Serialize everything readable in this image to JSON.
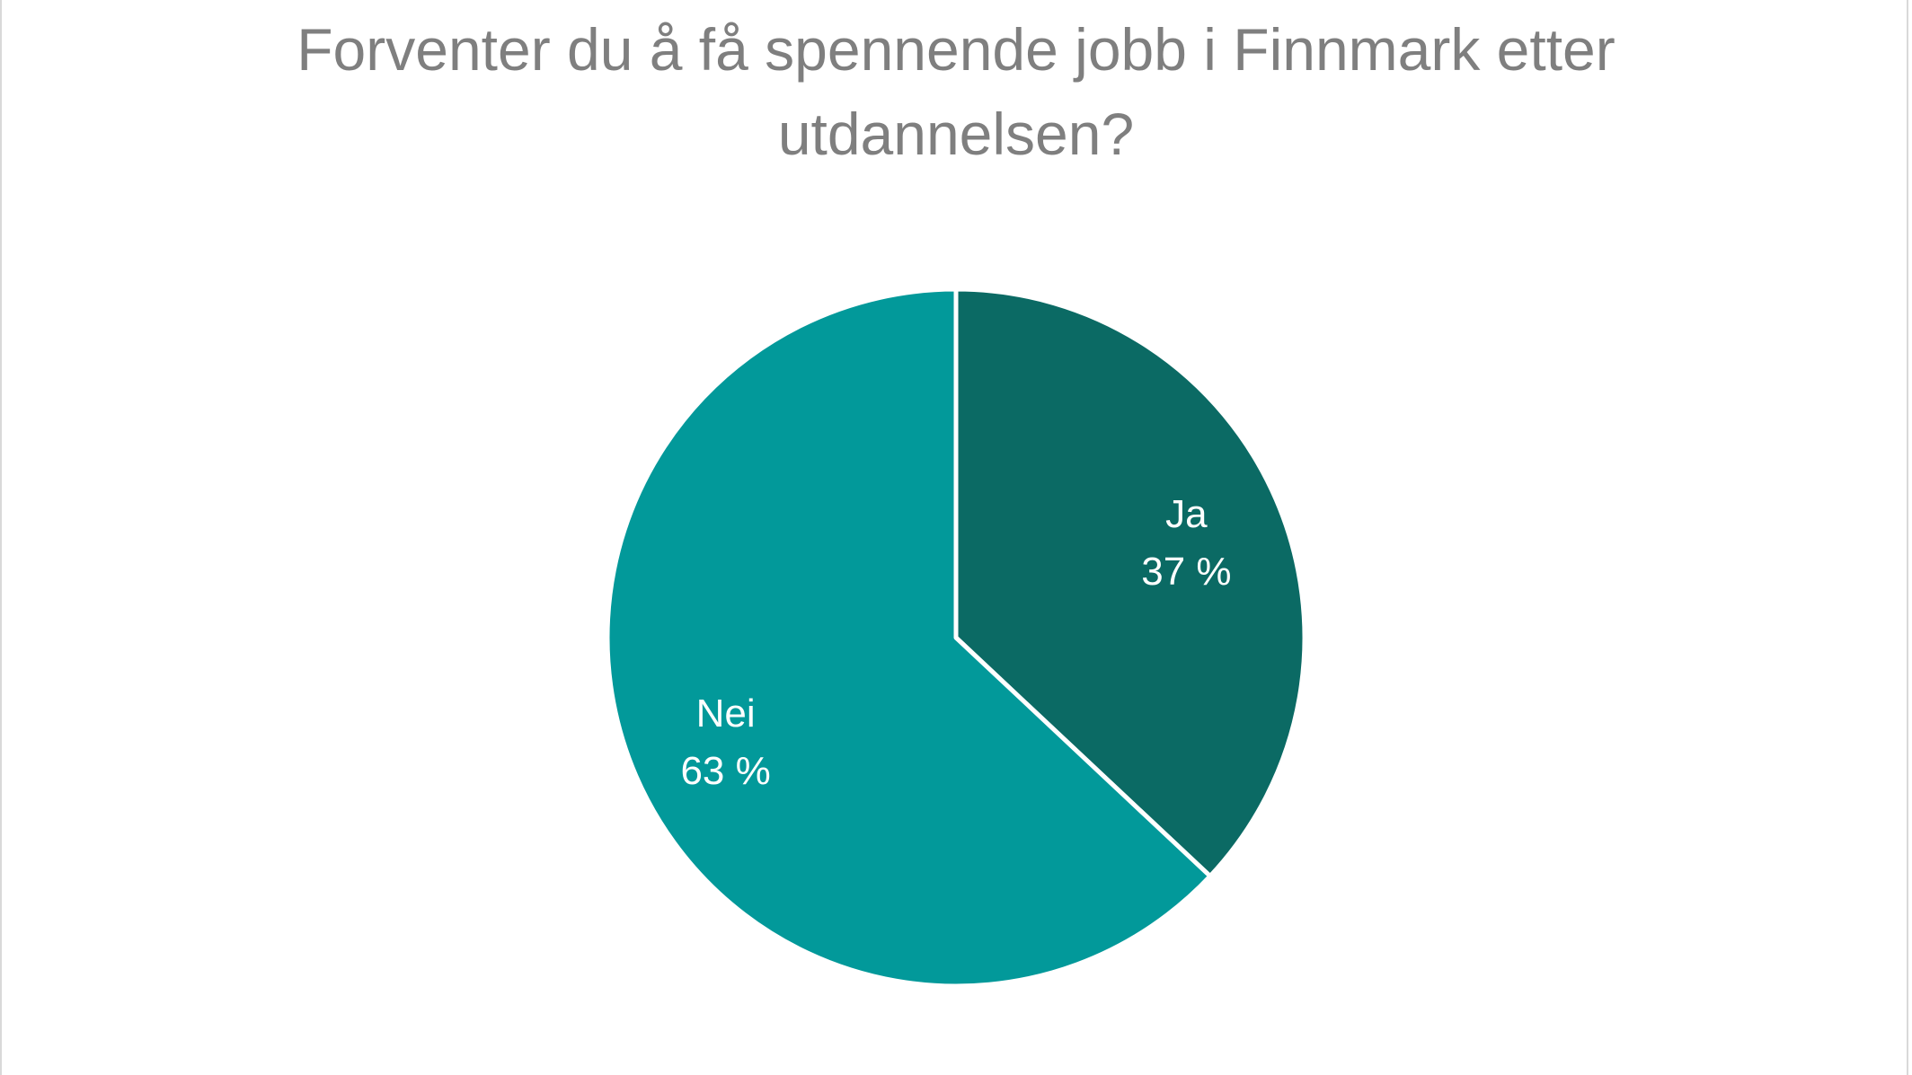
{
  "chart_data": {
    "type": "pie",
    "title": "Forventer du å få spennende jobb i Finnmark etter utdannelsen?",
    "slices": [
      {
        "label": "Ja",
        "value": 37,
        "value_label": "37 %",
        "color": "#0b6a64"
      },
      {
        "label": "Nei",
        "value": 63,
        "value_label": "63 %",
        "color": "#02999a"
      }
    ],
    "start_angle": "12 o'clock",
    "direction": "clockwise",
    "legend": "none",
    "slice_separator_color": "#ffffff"
  }
}
